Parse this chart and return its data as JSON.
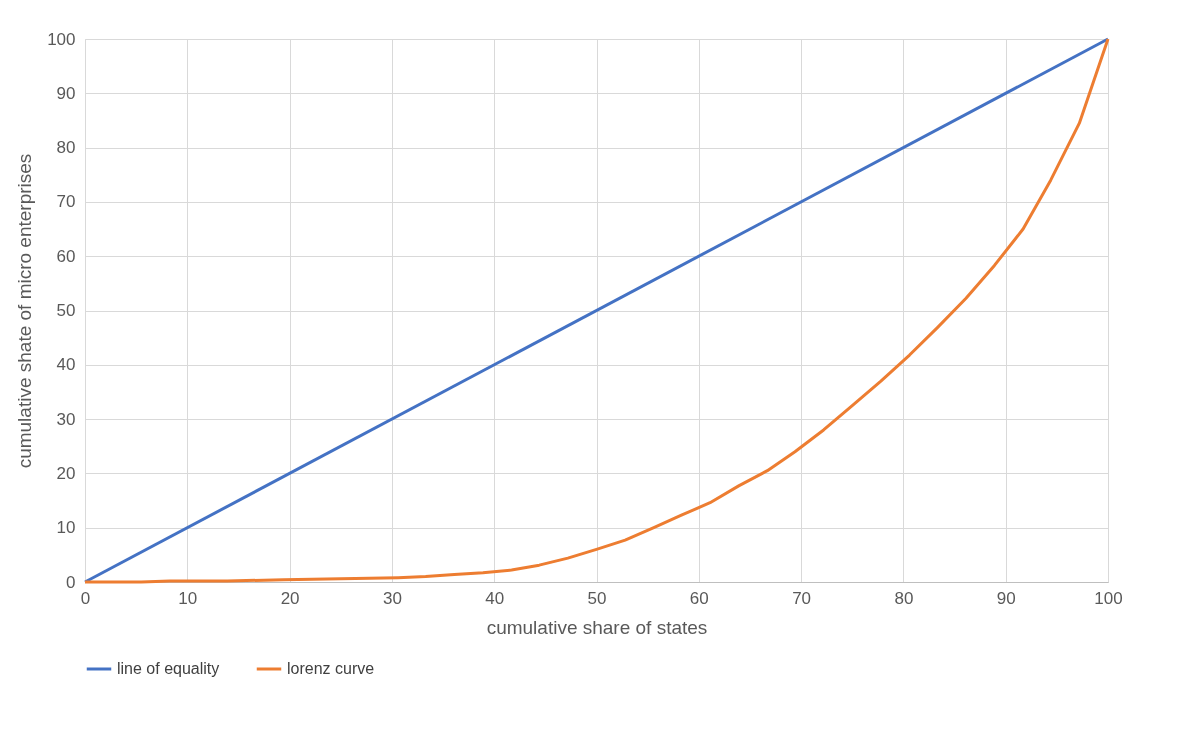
{
  "chart_data": {
    "type": "line",
    "xlabel": "cumulative share of states",
    "ylabel": "cumulative shate of micro enterprises",
    "xlim": [
      0,
      100
    ],
    "xticks": [
      0,
      10,
      20,
      30,
      40,
      50,
      60,
      70,
      80,
      90,
      100
    ],
    "ylim": [
      0,
      100
    ],
    "yticks": [
      0,
      10,
      20,
      30,
      40,
      50,
      60,
      70,
      80,
      90,
      100
    ],
    "grid": true,
    "legend": "bottom",
    "marker": "none",
    "line_style": "solid",
    "series": [
      {
        "name": "line of equality",
        "color": "#4472c4",
        "x": [
          0,
          100
        ],
        "values": [
          0,
          100
        ]
      },
      {
        "name": "lorenz curve",
        "color": "#ed7d31",
        "x": [
          0,
          5.5,
          8.3,
          13.9,
          19.4,
          25,
          30.6,
          33.3,
          36.1,
          38.9,
          41.7,
          44.4,
          47.2,
          50,
          52.8,
          55.6,
          58.3,
          61.1,
          63.9,
          66.7,
          69.4,
          72.2,
          75,
          77.8,
          80.6,
          83.3,
          86.1,
          88.9,
          91.7,
          94.4,
          97.2,
          100
        ],
        "values": [
          0,
          0,
          0.2,
          0.2,
          0.4,
          0.6,
          0.8,
          1,
          1.4,
          1.7,
          2.2,
          3.1,
          4.4,
          6,
          7.7,
          10,
          12.3,
          14.6,
          17.7,
          20.5,
          24,
          28,
          32.5,
          37,
          41.8,
          46.8,
          52.2,
          58.3,
          65,
          74,
          84.5,
          100
        ]
      }
    ]
  }
}
